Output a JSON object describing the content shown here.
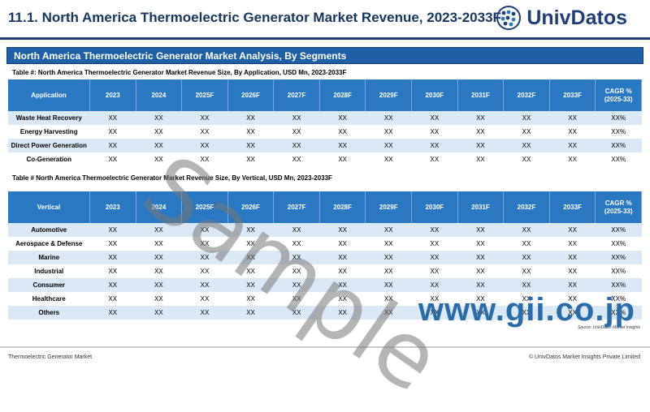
{
  "header": {
    "title": "11.1. North America Thermoelectric Generator Market Revenue, 2023-2033F",
    "logo_text": "UnivDatos",
    "accent": "#1f3e79"
  },
  "section_title": "North America Thermoelectric Generator Market Analysis, By Segments",
  "columns": [
    "2023",
    "2024",
    "2025F",
    "2026F",
    "2027F",
    "2028F",
    "2029F",
    "2030F",
    "2031F",
    "2032F",
    "2033F"
  ],
  "cagr_header": "CAGR % (2025-33)",
  "table1": {
    "caption": "Table #: North America Thermoelectric Generator  Market Revenue Size, By Application, USD Mn, 2023-2033F",
    "first_header": "Application",
    "rows": [
      {
        "label": "Waste Heat Recovery",
        "values": [
          "XX",
          "XX",
          "XX",
          "XX",
          "XX",
          "XX",
          "XX",
          "XX",
          "XX",
          "XX",
          "XX"
        ],
        "cagr": "XX%"
      },
      {
        "label": "Energy Harvesting",
        "values": [
          "XX",
          "XX",
          "XX",
          "XX",
          "XX",
          "XX",
          "XX",
          "XX",
          "XX",
          "XX",
          "XX"
        ],
        "cagr": "XX%"
      },
      {
        "label": "Direct Power Generation",
        "values": [
          "XX",
          "XX",
          "XX",
          "XX",
          "XX",
          "XX",
          "XX",
          "XX",
          "XX",
          "XX",
          "XX"
        ],
        "cagr": "XX%"
      },
      {
        "label": "Co-Generation",
        "values": [
          "XX",
          "XX",
          "XX",
          "XX",
          "XX",
          "XX",
          "XX",
          "XX",
          "XX",
          "XX",
          "XX"
        ],
        "cagr": "XX%"
      }
    ]
  },
  "table2": {
    "caption": "Table # North America Thermoelectric Generator  Market Revenue Size, By  Vertical, USD Mn, 2023-2033F",
    "first_header": "Vertical",
    "rows": [
      {
        "label": "Automotive",
        "values": [
          "XX",
          "XX",
          "XX",
          "XX",
          "XX",
          "XX",
          "XX",
          "XX",
          "XX",
          "XX",
          "XX"
        ],
        "cagr": "XX%"
      },
      {
        "label": "Aerospace & Defense",
        "values": [
          "XX",
          "XX",
          "XX",
          "XX",
          "XX",
          "XX",
          "XX",
          "XX",
          "XX",
          "XX",
          "XX"
        ],
        "cagr": "XX%"
      },
      {
        "label": "Marine",
        "values": [
          "XX",
          "XX",
          "XX",
          "XX",
          "XX",
          "XX",
          "XX",
          "XX",
          "XX",
          "XX",
          "XX"
        ],
        "cagr": "XX%"
      },
      {
        "label": "Industrial",
        "values": [
          "XX",
          "XX",
          "XX",
          "XX",
          "XX",
          "XX",
          "XX",
          "XX",
          "XX",
          "XX",
          "XX"
        ],
        "cagr": "XX%"
      },
      {
        "label": "Consumer",
        "values": [
          "XX",
          "XX",
          "XX",
          "XX",
          "XX",
          "XX",
          "XX",
          "XX",
          "XX",
          "XX",
          "XX"
        ],
        "cagr": "XX%"
      },
      {
        "label": "Healthcare",
        "values": [
          "XX",
          "XX",
          "XX",
          "XX",
          "XX",
          "XX",
          "XX",
          "XX",
          "XX",
          "XX",
          "XX"
        ],
        "cagr": "XX%"
      },
      {
        "label": "Others",
        "values": [
          "XX",
          "XX",
          "XX",
          "XX",
          "XX",
          "XX",
          "XX",
          "XX",
          "XX",
          "XX",
          "XX"
        ],
        "cagr": "XX%"
      }
    ]
  },
  "source": "Source: UnivDatos Market Insights",
  "footer": {
    "left": "Thermoelectric Generator Market",
    "right": "© UnivDatos Market Insights Private Limited"
  },
  "watermarks": {
    "sample": "Sample",
    "gii": "www.gii.co.jp"
  }
}
